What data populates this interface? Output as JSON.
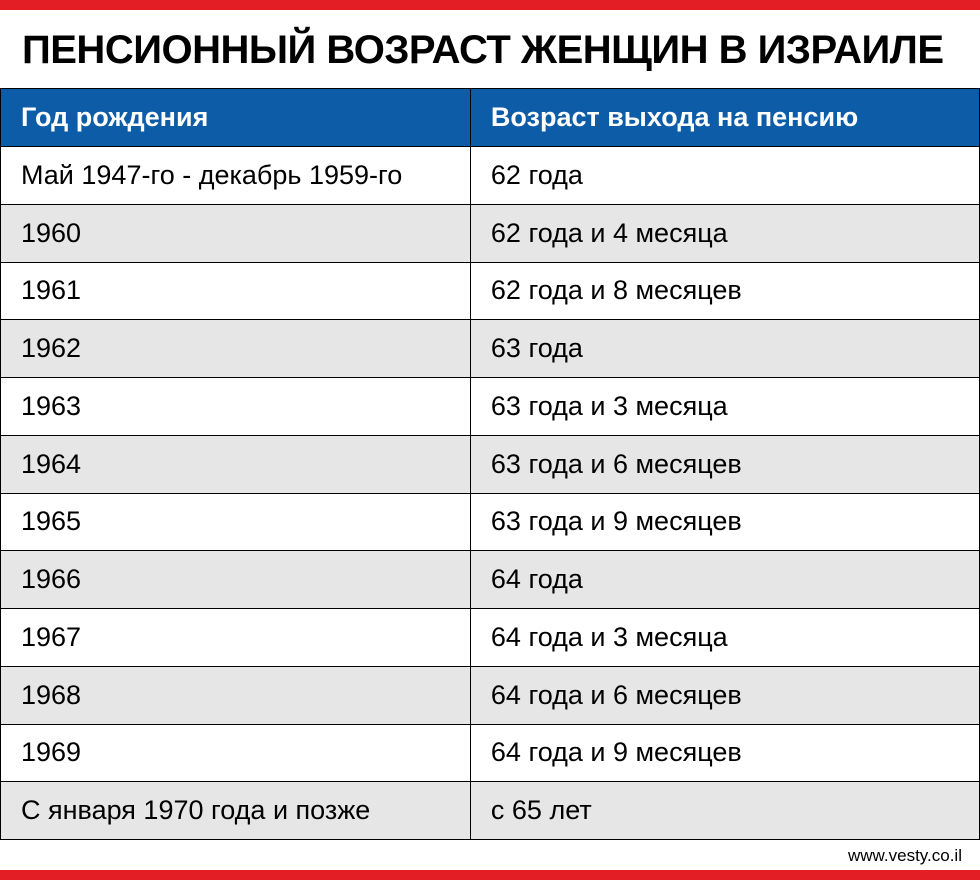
{
  "title": "ПЕНСИОННЫЙ ВОЗРАСТ ЖЕНЩИН В ИЗРАИЛЕ",
  "table": {
    "columns": [
      "Год рождения",
      "Возраст выхода на пенсию"
    ],
    "rows": [
      [
        "Май 1947-го - декабрь 1959-го",
        "62 года"
      ],
      [
        "1960",
        "62 года и 4 месяца"
      ],
      [
        "1961",
        "62 года и 8 месяцев"
      ],
      [
        "1962",
        "63 года"
      ],
      [
        "1963",
        "63 года и 3 месяца"
      ],
      [
        "1964",
        "63 года и 6 месяцев"
      ],
      [
        "1965",
        "63 года и 9 месяцев"
      ],
      [
        "1966",
        "64 года"
      ],
      [
        "1967",
        "64 года и 3 месяца"
      ],
      [
        "1968",
        "64 года и 6 месяцев"
      ],
      [
        "1969",
        "64 года и 9 месяцев"
      ],
      [
        "С января 1970 года и позже",
        "с 65 лет"
      ]
    ],
    "header_bg": "#0d5ca8",
    "header_text_color": "#ffffff",
    "row_bg_odd": "#ffffff",
    "row_bg_even": "#e6e6e6",
    "border_color": "#000000",
    "accent_color": "#e31e24",
    "title_fontsize": 40,
    "header_fontsize": 27,
    "cell_fontsize": 27
  },
  "footer": "www.vesty.co.il"
}
